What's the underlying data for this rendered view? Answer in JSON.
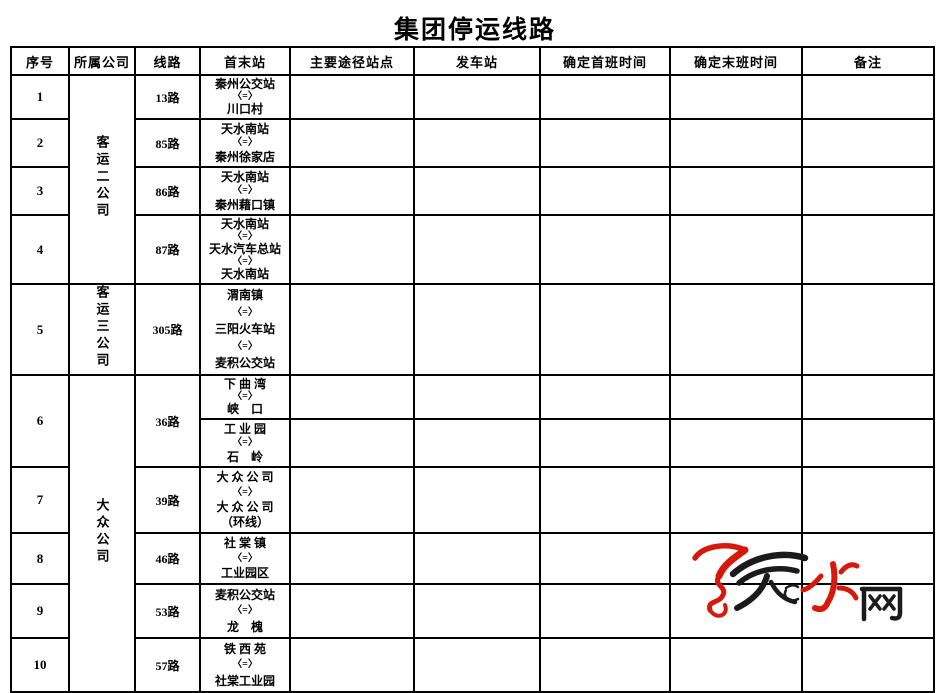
{
  "title": "集团停运线路",
  "table": {
    "headers": [
      "序号",
      "所属公司",
      "线路",
      "首末站",
      "主要途径站点",
      "发车站",
      "确定首班时间",
      "确定末班时间",
      "备注"
    ],
    "companies": {
      "c1": "客运二公司",
      "c2": "客运三公司",
      "c3": "大众公司"
    },
    "rows": {
      "r1": {
        "no": "1",
        "route": "13路",
        "stations": [
          "秦州公交站",
          "〈=〉",
          "川口村"
        ]
      },
      "r2": {
        "no": "2",
        "route": "85路",
        "stations": [
          "天水南站",
          "〈=〉",
          "秦州徐家店"
        ]
      },
      "r3": {
        "no": "3",
        "route": "86路",
        "stations": [
          "天水南站",
          "〈=〉",
          "秦州藉口镇"
        ]
      },
      "r4": {
        "no": "4",
        "route": "87路",
        "stations": [
          "天水南站",
          "〈=〉",
          "天水汽车总站",
          "〈=〉",
          "天水南站"
        ]
      },
      "r5": {
        "no": "5",
        "route": "305路",
        "stations": [
          "渭南镇",
          "〈=〉",
          "三阳火车站",
          "〈=〉",
          "麦积公交站"
        ]
      },
      "r6": {
        "no": "6",
        "route": "36路",
        "stations_a": [
          "下 曲 湾",
          "〈=〉",
          "峡　口"
        ],
        "stations_b": [
          "工 业 园",
          "〈=〉",
          "石　岭"
        ]
      },
      "r7": {
        "no": "7",
        "route": "39路",
        "stations": [
          "大 众 公 司",
          "〈=〉",
          "大 众 公 司",
          "（环线）"
        ]
      },
      "r8": {
        "no": "8",
        "route": "46路",
        "stations": [
          "社 棠 镇",
          "〈=〉",
          "工业园区"
        ]
      },
      "r9": {
        "no": "9",
        "route": "53路",
        "stations": [
          "麦积公交站",
          "〈=〉",
          "龙　槐"
        ]
      },
      "r10": {
        "no": "10",
        "route": "57路",
        "stations": [
          "铁 西 苑",
          "〈=〉",
          "社棠工业园"
        ]
      }
    }
  },
  "watermark": {
    "text": "天水网",
    "red": "#d6190a",
    "black": "#1b1b1b"
  }
}
